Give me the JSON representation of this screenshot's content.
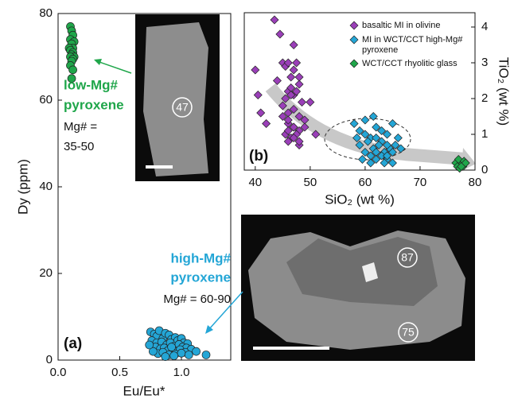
{
  "chart_data": [
    {
      "type": "scatter",
      "xlabel": "Eu/Eu*",
      "ylabel": "Dy (ppm)",
      "xlim": [
        0,
        1.4
      ],
      "ylim": [
        0,
        80
      ],
      "xticks": [
        {
          "value": 0,
          "label": "0.0"
        },
        0.5,
        {
          "value": 1,
          "label": "1.0"
        }
      ],
      "yticks": [
        0,
        20,
        40,
        60,
        80
      ],
      "series": [
        {
          "marker": "circle",
          "color": "#1fa64a",
          "x": [
            0.1,
            0.11,
            0.12,
            0.1,
            0.13,
            0.11,
            0.12,
            0.09,
            0.1,
            0.12,
            0.11,
            0.13,
            0.1,
            0.12,
            0.11,
            0.1,
            0.12,
            0.11
          ],
          "values": [
            77,
            76,
            75,
            74,
            73.5,
            73,
            72,
            72,
            71.5,
            71,
            70.5,
            70,
            70,
            69.5,
            69,
            68,
            67,
            65
          ]
        },
        {
          "marker": "circle",
          "color": "#24a6d6",
          "x": [
            0.75,
            0.78,
            0.8,
            0.82,
            0.85,
            0.87,
            0.9,
            0.92,
            0.95,
            0.97,
            1.0,
            1.02,
            1.05,
            0.76,
            0.8,
            0.84,
            0.88,
            0.91,
            0.94,
            0.98,
            1.01,
            1.04,
            1.08,
            0.79,
            0.83,
            0.86,
            0.89,
            0.93,
            0.96,
            0.99,
            1.03,
            0.81,
            0.85,
            0.9,
            0.95,
            1.0,
            1.06,
            0.77,
            0.92,
            1.2,
            0.87,
            0.94,
            0.74,
            1.12
          ],
          "values": [
            6.5,
            6,
            5.5,
            6.8,
            5,
            6.2,
            5.8,
            4.8,
            5.2,
            4.5,
            5,
            4,
            3.8,
            4.5,
            4,
            4.2,
            3.5,
            4,
            3.2,
            3.6,
            3,
            2.8,
            2.5,
            3,
            2.6,
            2.8,
            2.2,
            2.5,
            2,
            2.4,
            1.8,
            1.5,
            1.8,
            1.2,
            1.4,
            1.6,
            1.2,
            2,
            3,
            1.2,
            0.8,
            1,
            3.5,
            2
          ]
        }
      ],
      "annotations": [
        {
          "text": "low-Mg#",
          "color": "#1fa64a"
        },
        {
          "text": "pyroxene",
          "color": "#1fa64a"
        },
        {
          "text": "Mg# =",
          "color": "#111111"
        },
        {
          "text": "35-50",
          "color": "#111111"
        },
        {
          "text": "high-Mg#",
          "color": "#24a6d6"
        },
        {
          "text": "pyroxene",
          "color": "#24a6d6"
        },
        {
          "text": "Mg# = 60-90",
          "color": "#111111"
        },
        {
          "text": "(a)",
          "color": "#111111"
        }
      ]
    },
    {
      "type": "scatter",
      "xlabel": "SiO₂ (wt %)",
      "ylabel": "TiO₂ (wt %)",
      "yaxis": "right",
      "xlim": [
        38,
        80
      ],
      "ylim": [
        0,
        4.4
      ],
      "xticks": [
        40,
        50,
        60,
        70,
        80
      ],
      "yticks": [
        0,
        1,
        2,
        3,
        4
      ],
      "series": [
        {
          "name": "basaltic MI in olivine",
          "marker": "diamond",
          "color": "#9a3fb8",
          "x": [
            43.5,
            40,
            40.5,
            41,
            42,
            44.5,
            45,
            45.5,
            46,
            46.5,
            47,
            47.5,
            48,
            46,
            47,
            45.5,
            46.5,
            47.5,
            48.5,
            45,
            46,
            47,
            48,
            49,
            46,
            47,
            48,
            45.5,
            46.5,
            47.5,
            50,
            46,
            47,
            48,
            45,
            46,
            47,
            48,
            49,
            51,
            44,
            48,
            47,
            46.5,
            46
          ],
          "values": [
            4.2,
            2.8,
            2.1,
            1.6,
            1.3,
            3.8,
            3.0,
            2.9,
            3.0,
            2.6,
            2.8,
            3.0,
            2.4,
            2.2,
            2.1,
            2.0,
            2.3,
            2.2,
            1.9,
            1.8,
            1.6,
            1.7,
            1.5,
            1.4,
            1.3,
            1.2,
            1.1,
            1.0,
            0.9,
            1.0,
            1.9,
            0.8,
            0.9,
            0.7,
            1.5,
            1.4,
            1.2,
            0.8,
            1.2,
            1.0,
            2.5,
            2.6,
            3.5,
            2.1,
            1.1
          ]
        },
        {
          "name": "MI in WCT/CCT high-Mg# pyroxene",
          "marker": "diamond",
          "color": "#24a6d6",
          "x": [
            58,
            59,
            60,
            61,
            62,
            63,
            64,
            65,
            66,
            59,
            60.5,
            61.5,
            62.5,
            63.5,
            64.5,
            65.5,
            58.5,
            60,
            61,
            62,
            63,
            64,
            65,
            66.5,
            59.5,
            61,
            62,
            63.5,
            64,
            65,
            60,
            62,
            64,
            63,
            61.5
          ],
          "values": [
            1.3,
            1.1,
            1.4,
            0.9,
            1.2,
            0.8,
            1.0,
            1.3,
            0.9,
            0.7,
            0.8,
            0.6,
            0.7,
            0.5,
            0.6,
            0.7,
            0.9,
            0.5,
            0.4,
            0.5,
            0.4,
            0.3,
            0.5,
            0.6,
            0.3,
            0.2,
            0.3,
            0.2,
            0.4,
            0.2,
            1.0,
            0.9,
            0.7,
            1.1,
            1.5
          ]
        },
        {
          "name": "WCT/CCT rhyolitic glass",
          "marker": "diamond",
          "color": "#1fa64a",
          "x": [
            76.5,
            77,
            77.5,
            78,
            76.8,
            77.2,
            77.8,
            78.3,
            77.5
          ],
          "values": [
            0.2,
            0.3,
            0.15,
            0.25,
            0.1,
            0.05,
            0.1,
            0.2,
            0.1
          ]
        }
      ],
      "annotations": [
        {
          "text": "(b)",
          "color": "#111111"
        }
      ]
    }
  ],
  "image_labels": [
    "47",
    "87",
    "75"
  ]
}
